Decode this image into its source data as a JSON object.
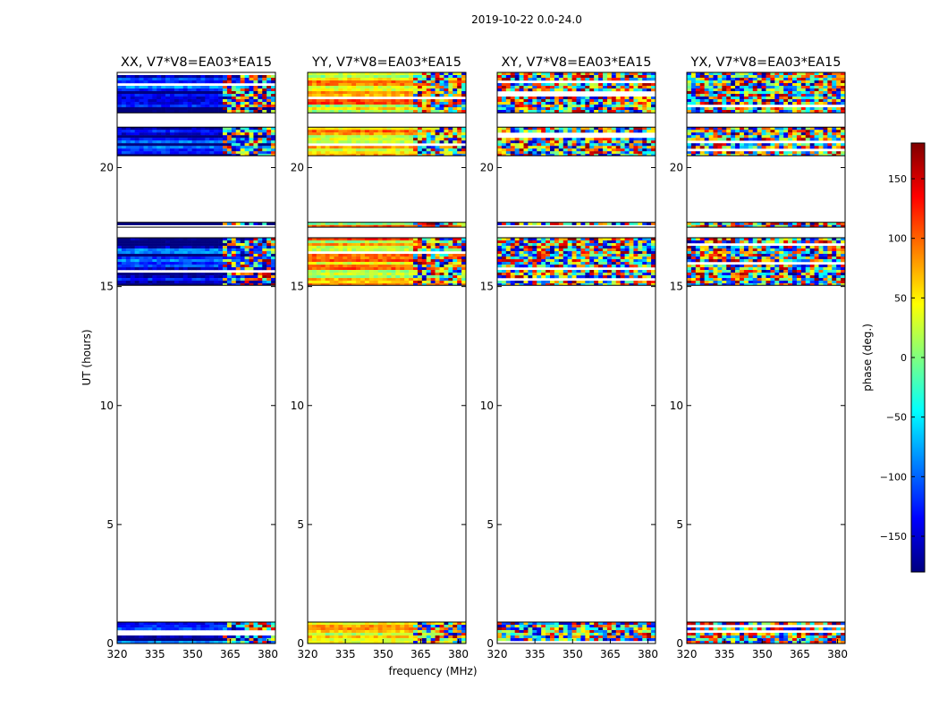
{
  "figure": {
    "suptitle": "2019-10-22 0.0-24.0"
  },
  "chart_data": {
    "type": "heatmap",
    "xlabel": "frequency (MHz)",
    "ylabel": "UT (hours)",
    "xlim": [
      320,
      383
    ],
    "ylim": [
      0,
      24
    ],
    "xticks": [
      320,
      335,
      350,
      365,
      380
    ],
    "yticks": [
      0,
      5,
      10,
      15,
      20
    ],
    "colormap": "jet",
    "colorbar": {
      "label": "phase (deg.)",
      "range": [
        -180,
        180
      ],
      "ticks": [
        -150,
        -100,
        -50,
        0,
        50,
        100,
        150
      ],
      "tick_labels": [
        "−150",
        "−100",
        "−50",
        "0",
        "50",
        "100",
        "150"
      ],
      "colors": [
        "#00007f",
        "#0000ff",
        "#007fff",
        "#00ffff",
        "#7fff7f",
        "#ffff00",
        "#ff7f00",
        "#ff0000",
        "#7f0000"
      ]
    },
    "data_time_ranges_hours": [
      [
        0.0,
        0.9
      ],
      [
        15.05,
        17.05
      ],
      [
        17.5,
        17.7
      ],
      [
        20.5,
        21.7
      ],
      [
        22.3,
        24.0
      ]
    ],
    "panels": [
      {
        "title": "XX, V7*V8=EA03*EA15",
        "character": "coherent phase near -150 deg with structure above 364 MHz"
      },
      {
        "title": "YY, V7*V8=EA03*EA15",
        "character": "coherent phase near +50 to +100 deg with structure above 364 MHz"
      },
      {
        "title": "XY, V7*V8=EA03*EA15",
        "character": "noise-like phase"
      },
      {
        "title": "YX, V7*V8=EA03*EA15",
        "character": "noise-like phase"
      }
    ]
  }
}
